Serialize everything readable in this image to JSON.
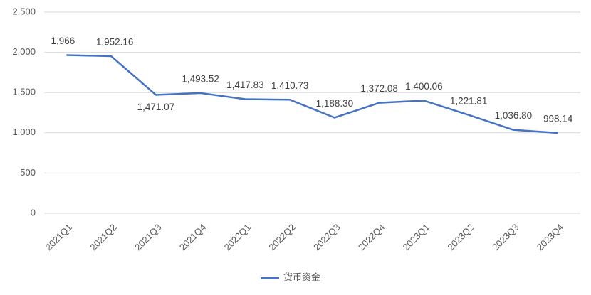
{
  "chart_data": {
    "type": "line",
    "categories": [
      "2021Q1",
      "2021Q2",
      "2021Q3",
      "2021Q4",
      "2022Q1",
      "2022Q2",
      "2022Q3",
      "2022Q4",
      "2023Q1",
      "2023Q2",
      "2023Q3",
      "2023Q4"
    ],
    "series": [
      {
        "name": "货币资金",
        "color": "#4472c4",
        "values": [
          1966,
          1952.16,
          1471.07,
          1493.52,
          1417.83,
          1410.73,
          1188.3,
          1372.08,
          1400.06,
          1221.81,
          1036.8,
          998.14
        ],
        "value_labels": [
          "1,966",
          "1,952.16",
          "1,471.07",
          "1,493.52",
          "1,417.83",
          "1,410.73",
          "1,188.30",
          "1,372.08",
          "1,400.06",
          "1,221.81",
          "1,036.80",
          "998.14"
        ]
      }
    ],
    "ylim": [
      0,
      2500
    ],
    "yticks": [
      0,
      500,
      {
        "value": 1000,
        "label": "1,000"
      },
      {
        "value": 1500,
        "label": "1,500"
      },
      {
        "value": 2000,
        "label": "2,000"
      },
      {
        "value": 2500,
        "label": "2,500"
      }
    ],
    "grid": true,
    "legend": "bottom"
  }
}
